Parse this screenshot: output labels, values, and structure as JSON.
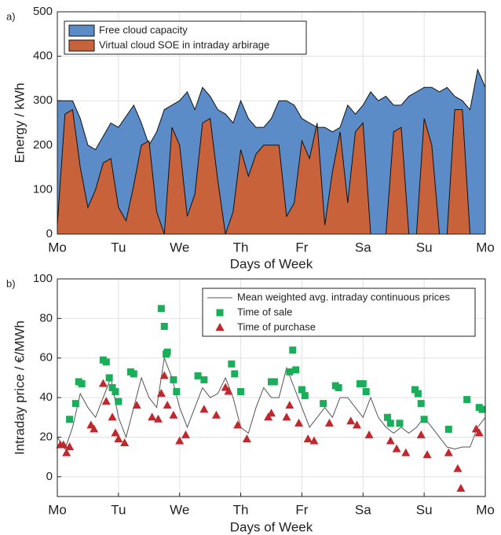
{
  "chart_data": [
    {
      "type": "area",
      "label": "a)",
      "xlabel": "Days of Week",
      "ylabel": "Energy / kWh",
      "xlim": [
        0,
        7
      ],
      "xticks": [
        {
          "value": 0,
          "label": "Mo"
        },
        {
          "value": 1,
          "label": "Tu"
        },
        {
          "value": 2,
          "label": "We"
        },
        {
          "value": 3,
          "label": "Th"
        },
        {
          "value": 4,
          "label": "Fr"
        },
        {
          "value": 5,
          "label": "Sa"
        },
        {
          "value": 6,
          "label": "Su"
        },
        {
          "value": 7,
          "label": "Mo"
        }
      ],
      "ylim": [
        0,
        500
      ],
      "yticks": [
        0,
        100,
        200,
        300,
        400,
        500
      ],
      "grid": true,
      "legend": "upper left",
      "x": [
        0,
        0.125,
        0.25,
        0.375,
        0.5,
        0.625,
        0.75,
        0.875,
        1,
        1.125,
        1.25,
        1.375,
        1.5,
        1.625,
        1.75,
        1.875,
        2,
        2.125,
        2.25,
        2.375,
        2.5,
        2.625,
        2.75,
        2.875,
        3,
        3.125,
        3.25,
        3.375,
        3.5,
        3.625,
        3.75,
        3.875,
        4,
        4.125,
        4.25,
        4.375,
        4.5,
        4.625,
        4.75,
        4.875,
        5,
        5.125,
        5.25,
        5.375,
        5.5,
        5.625,
        5.75,
        5.875,
        6,
        6.125,
        6.25,
        6.375,
        6.5,
        6.625,
        6.75,
        6.875,
        7
      ],
      "series": [
        {
          "name": "Free cloud capacity",
          "color": "#5b8cc8",
          "values": [
            300,
            300,
            300,
            260,
            200,
            190,
            220,
            250,
            240,
            265,
            290,
            250,
            200,
            230,
            280,
            290,
            300,
            320,
            280,
            330,
            310,
            280,
            270,
            250,
            300,
            260,
            240,
            240,
            260,
            300,
            300,
            290,
            260,
            250,
            240,
            240,
            230,
            240,
            290,
            270,
            290,
            320,
            300,
            310,
            290,
            290,
            310,
            320,
            330,
            330,
            320,
            330,
            310,
            300,
            280,
            370,
            330
          ]
        },
        {
          "name": "Virtual cloud SOE in intraday arbirage",
          "color": "#c8623a",
          "values": [
            20,
            270,
            280,
            150,
            60,
            100,
            160,
            170,
            60,
            30,
            110,
            200,
            210,
            50,
            0,
            240,
            200,
            40,
            90,
            250,
            260,
            120,
            0,
            50,
            190,
            130,
            180,
            200,
            200,
            200,
            40,
            70,
            210,
            170,
            250,
            20,
            140,
            230,
            70,
            230,
            250,
            0,
            0,
            0,
            230,
            240,
            0,
            0,
            260,
            200,
            0,
            0,
            280,
            280,
            0,
            0,
            0
          ]
        }
      ]
    },
    {
      "type": "line",
      "label": "b)",
      "xlabel": "Days of Week",
      "ylabel": "Intraday price / €/MWh",
      "xlim": [
        0,
        7
      ],
      "xticks": [
        {
          "value": 0,
          "label": "Mo"
        },
        {
          "value": 1,
          "label": "Tu"
        },
        {
          "value": 2,
          "label": "We"
        },
        {
          "value": 3,
          "label": "Th"
        },
        {
          "value": 4,
          "label": "Fr"
        },
        {
          "value": 5,
          "label": "Sa"
        },
        {
          "value": 6,
          "label": "Su"
        },
        {
          "value": 7,
          "label": "Mo"
        }
      ],
      "ylim": [
        -10,
        100
      ],
      "yticks": [
        0,
        20,
        40,
        60,
        80,
        100
      ],
      "grid": true,
      "legend": "upper right",
      "series": [
        {
          "name": "Mean weighted avg. intraday continuous prices",
          "type": "line",
          "color": "#555555",
          "x": [
            0,
            0.125,
            0.25,
            0.375,
            0.5,
            0.625,
            0.75,
            0.875,
            1,
            1.125,
            1.25,
            1.375,
            1.5,
            1.625,
            1.75,
            1.875,
            2,
            2.125,
            2.25,
            2.375,
            2.5,
            2.625,
            2.75,
            2.875,
            3,
            3.125,
            3.25,
            3.375,
            3.5,
            3.625,
            3.75,
            3.875,
            4,
            4.125,
            4.25,
            4.375,
            4.5,
            4.625,
            4.75,
            4.875,
            5,
            5.125,
            5.25,
            5.375,
            5.5,
            5.625,
            5.75,
            5.875,
            6,
            6.125,
            6.25,
            6.375,
            6.5,
            6.625,
            6.75,
            6.875,
            7
          ],
          "values": [
            20,
            14,
            25,
            42,
            35,
            30,
            40,
            50,
            30,
            20,
            35,
            50,
            40,
            35,
            60,
            50,
            35,
            25,
            35,
            45,
            40,
            42,
            50,
            40,
            25,
            22,
            35,
            45,
            40,
            40,
            55,
            45,
            35,
            25,
            30,
            35,
            30,
            40,
            40,
            35,
            30,
            40,
            30,
            25,
            22,
            25,
            22,
            25,
            30,
            25,
            20,
            15,
            14,
            15,
            15,
            25,
            30
          ]
        },
        {
          "name": "Time of sale",
          "type": "scatter",
          "marker": "square",
          "color": "#1aad5a",
          "x": [
            0.2,
            0.3,
            0.35,
            0.4,
            0.75,
            0.8,
            0.85,
            0.9,
            0.95,
            1,
            1.2,
            1.25,
            1.7,
            1.75,
            1.78,
            1.8,
            1.9,
            1.95,
            2.3,
            2.4,
            2.85,
            2.9,
            3,
            3.5,
            3.55,
            3.8,
            3.85,
            3.9,
            4,
            4.05,
            4.35,
            4.55,
            4.6,
            4.95,
            5,
            5.05,
            5.4,
            5.45,
            5.6,
            5.85,
            5.9,
            5.95,
            6,
            6.4,
            6.7,
            6.9,
            6.95
          ],
          "values": [
            29,
            37,
            48,
            47,
            59,
            58,
            50,
            45,
            43,
            38,
            53,
            52,
            85,
            76,
            62,
            63,
            49,
            43,
            51,
            49,
            57,
            52,
            43,
            48,
            48,
            53,
            64,
            54,
            44,
            41,
            37,
            46,
            45,
            47,
            47,
            43,
            30,
            27,
            27,
            44,
            42,
            37,
            29,
            24,
            39,
            35,
            34
          ]
        },
        {
          "name": "Time of purchase",
          "type": "scatter",
          "marker": "triangle",
          "color": "#c0282d",
          "x": [
            0.05,
            0.1,
            0.15,
            0.2,
            0.55,
            0.6,
            0.75,
            0.8,
            0.9,
            0.95,
            1,
            1.1,
            1.3,
            1.55,
            1.65,
            1.7,
            1.75,
            1.8,
            1.9,
            2,
            2.1,
            2.4,
            2.6,
            2.75,
            2.8,
            2.95,
            3.1,
            3.45,
            3.5,
            3.75,
            3.8,
            3.95,
            4.1,
            4.2,
            4.45,
            4.8,
            4.9,
            5.1,
            5.45,
            5.55,
            5.7,
            5.95,
            6.05,
            6.4,
            6.55,
            6.6,
            6.85,
            6.9
          ],
          "values": [
            16,
            16,
            12,
            15,
            26,
            24,
            47,
            38,
            30,
            22,
            19,
            17,
            36,
            30,
            29,
            42,
            51,
            36,
            31,
            18,
            21,
            34,
            31,
            45,
            43,
            26,
            19,
            30,
            32,
            30,
            36,
            27,
            19,
            18,
            27,
            28,
            26,
            21,
            18,
            14,
            12,
            21,
            11,
            12,
            4,
            -6,
            24,
            22
          ]
        }
      ]
    }
  ]
}
